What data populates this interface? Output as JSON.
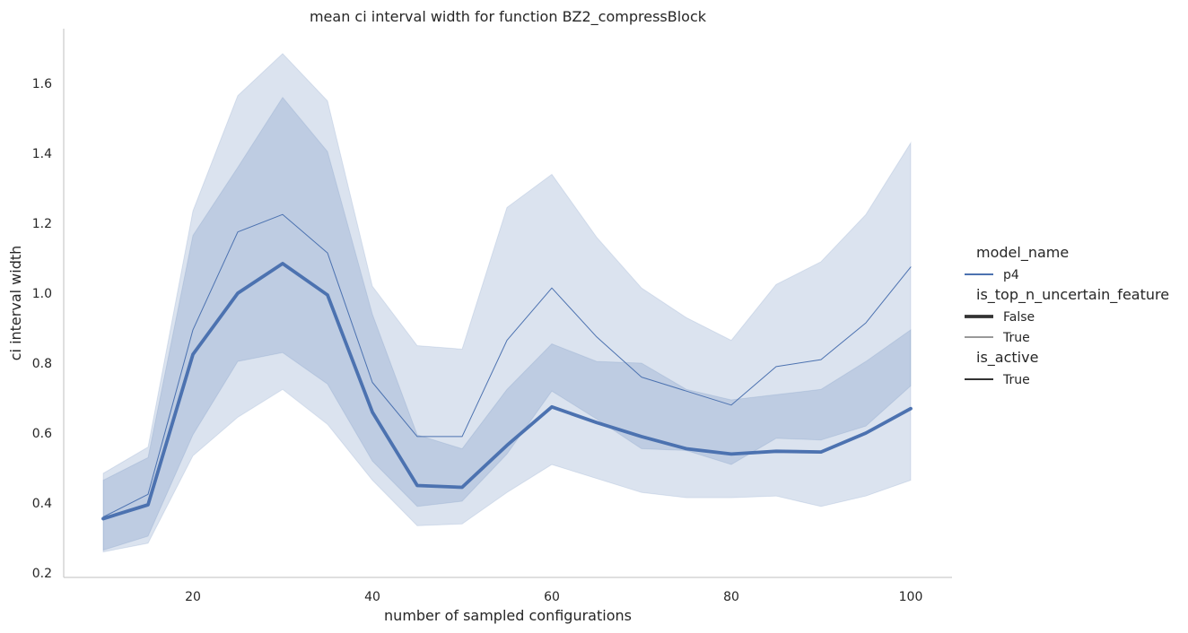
{
  "chart_data": {
    "type": "line",
    "title": "mean ci interval width for function BZ2_compressBlock",
    "xlabel": "number of sampled configurations",
    "ylabel": "ci interval width",
    "xlim": [
      5,
      105
    ],
    "ylim": [
      0.19,
      1.77
    ],
    "xticks": [
      20,
      40,
      60,
      80,
      100
    ],
    "yticks": [
      0.2,
      0.4,
      0.6,
      0.8,
      1.0,
      1.2,
      1.4,
      1.6
    ],
    "grid": false,
    "legend_position": "right",
    "color": "#4c72b0",
    "x": [
      10,
      15,
      20,
      25,
      30,
      35,
      40,
      45,
      50,
      55,
      60,
      65,
      70,
      75,
      80,
      85,
      90,
      95,
      100
    ],
    "series": [
      {
        "name": "False",
        "style": "thick",
        "values": [
          0.355,
          0.395,
          0.825,
          1.0,
          1.085,
          0.995,
          0.66,
          0.45,
          0.445,
          0.565,
          0.675,
          0.63,
          0.59,
          0.555,
          0.54,
          0.548,
          0.546,
          0.6,
          0.67
        ],
        "ci_lower": [
          0.265,
          0.305,
          0.595,
          0.805,
          0.83,
          0.74,
          0.52,
          0.39,
          0.405,
          0.54,
          0.72,
          0.64,
          0.555,
          0.55,
          0.51,
          0.585,
          0.58,
          0.62,
          0.735
        ],
        "ci_upper": [
          0.465,
          0.53,
          1.165,
          1.36,
          1.56,
          1.405,
          0.94,
          0.595,
          0.555,
          0.725,
          0.855,
          0.805,
          0.8,
          0.725,
          0.695,
          0.71,
          0.725,
          0.805,
          0.895
        ]
      },
      {
        "name": "True",
        "style": "thin",
        "values": [
          0.36,
          0.425,
          0.895,
          1.175,
          1.225,
          1.115,
          0.745,
          0.59,
          0.59,
          0.865,
          1.015,
          0.875,
          0.76,
          0.72,
          0.68,
          0.79,
          0.81,
          0.915,
          1.075
        ],
        "ci_lower": [
          0.26,
          0.285,
          0.535,
          0.645,
          0.725,
          0.625,
          0.465,
          0.335,
          0.34,
          0.43,
          0.51,
          0.47,
          0.43,
          0.415,
          0.415,
          0.42,
          0.39,
          0.42,
          0.465
        ],
        "ci_upper": [
          0.485,
          0.56,
          1.235,
          1.565,
          1.685,
          1.55,
          1.02,
          0.85,
          0.84,
          1.245,
          1.34,
          1.16,
          1.015,
          0.93,
          0.865,
          1.025,
          1.09,
          1.225,
          1.43
        ]
      }
    ],
    "legend": {
      "sections": [
        {
          "title": "model_name",
          "entries": [
            {
              "label": "p4",
              "style": "colored"
            }
          ]
        },
        {
          "title": "is_top_n_uncertain_feature",
          "entries": [
            {
              "label": "False",
              "style": "thick"
            },
            {
              "label": "True",
              "style": "thin"
            }
          ]
        },
        {
          "title": "is_active",
          "entries": [
            {
              "label": "True",
              "style": "medium"
            }
          ]
        }
      ]
    }
  }
}
